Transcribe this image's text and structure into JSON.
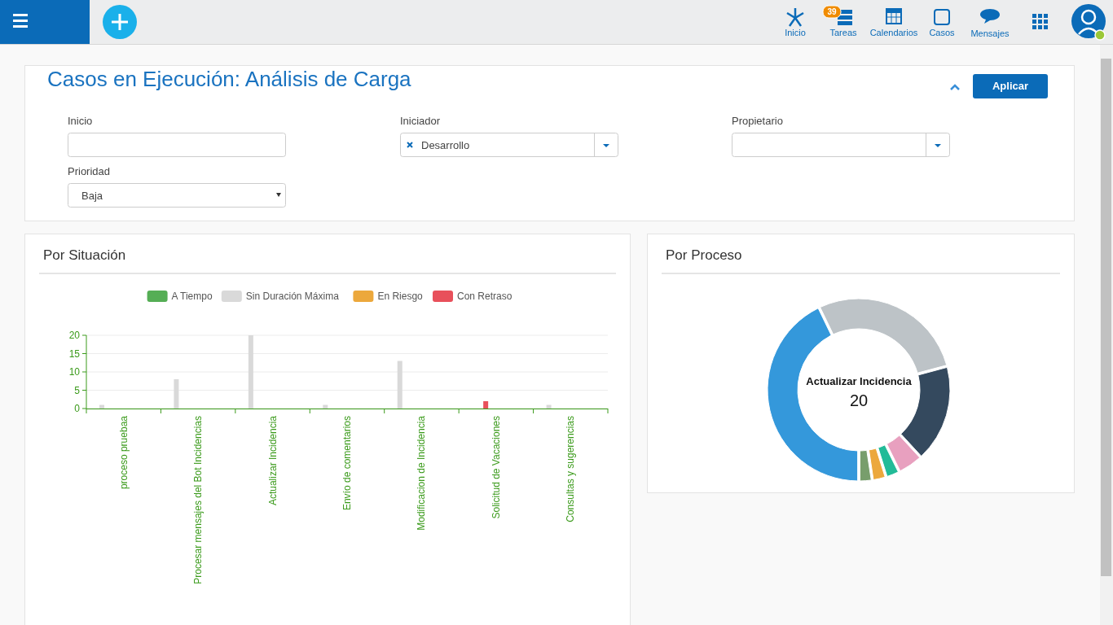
{
  "chart_data": [
    {
      "type": "other",
      "annotations": [
        "39",
        "Inicio",
        "Tareas",
        "Calendarios",
        "Casos",
        "Mensajes"
      ]
    },
    {
      "type": "other",
      "title": "Casos en Ejecución: Análisis de Carga",
      "annotations": [
        "Aplicar",
        "Inicio",
        "Iniciador",
        "Desarrollo",
        "Propietario",
        "Prioridad",
        "Baja"
      ]
    },
    {
      "type": "bar",
      "title": "Por Situación",
      "categories": [
        "proceso pruebaa",
        "Procesar mensajes del Bot Incidencias",
        "Actualizar Incidencia",
        "Envío de comentarios",
        "Modificacion de Incidencia",
        "Solicitud de Vacaciones",
        "Consultas y sugerencias"
      ],
      "series": [
        {
          "name": "A Tiempo",
          "color": "#55ae55",
          "values": [
            0,
            0,
            0,
            0,
            0,
            0,
            0
          ]
        },
        {
          "name": "Sin Duración Máxima",
          "color": "#d9d9d9",
          "values": [
            1,
            8,
            20,
            1,
            13,
            0,
            1
          ]
        },
        {
          "name": "En Riesgo",
          "color": "#eca83c",
          "values": [
            0,
            0,
            0,
            0,
            0,
            0,
            0
          ]
        },
        {
          "name": "Con Retraso",
          "color": "#e8505b",
          "values": [
            0,
            0,
            0,
            0,
            0,
            2,
            0
          ]
        }
      ],
      "ylim": [
        0,
        20
      ],
      "yticks": [
        0,
        5,
        10,
        15,
        20
      ],
      "grid": "y",
      "legend": "top"
    },
    {
      "type": "donut",
      "title": "Por Proceso",
      "categories": [
        null,
        null,
        null,
        null,
        null,
        null,
        null
      ],
      "values": [
        43.5,
        28.3,
        17.4,
        4.3,
        2.2,
        2.2,
        2.1
      ],
      "annotations": [
        "Actualizar Incidencia",
        "20"
      ],
      "colors": [
        "#3498db",
        "#bdc3c7",
        "#34495e",
        "#e8a0bf",
        "#22bb98",
        "#eca83c",
        "#789e6c"
      ]
    }
  ]
}
